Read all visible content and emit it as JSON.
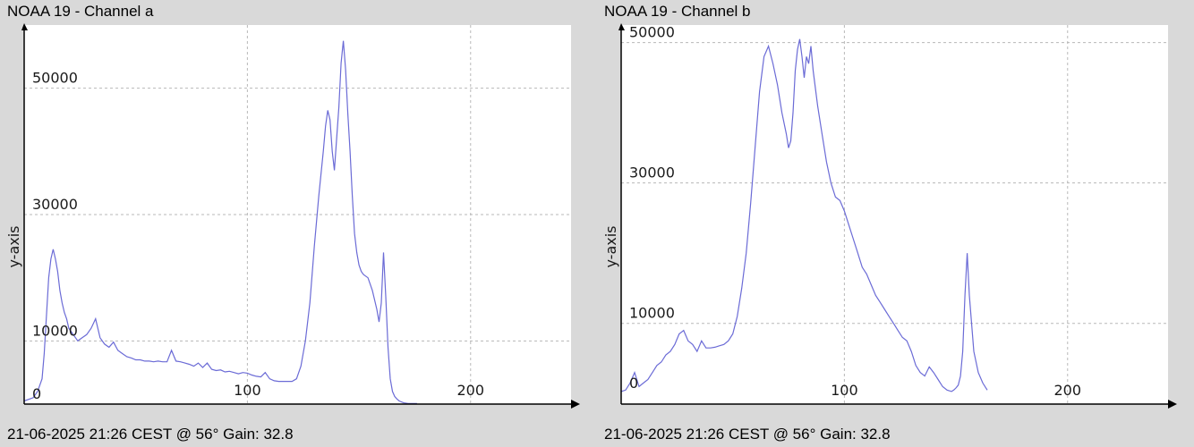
{
  "chart_data": [
    {
      "type": "line",
      "title": "NOAA 19 - Channel a",
      "footer": "21-06-2025 21:26 CEST @ 56° Gain: 32.8",
      "xlabel": "",
      "ylabel": "y-axis",
      "xlim": [
        0,
        245
      ],
      "ylim": [
        0,
        60000
      ],
      "x_ticks": [
        0,
        100,
        200
      ],
      "x_tick_labels": [
        "",
        "100",
        "200"
      ],
      "y_ticks": [
        0,
        10000,
        30000,
        50000
      ],
      "y_tick_labels": [
        "0",
        "10000",
        "30000",
        "50000"
      ],
      "grid": true,
      "series": [
        {
          "color": "#6b6bd6",
          "x": [
            0,
            4,
            6,
            8,
            9,
            10,
            11,
            12,
            13,
            14,
            15,
            16,
            17,
            18,
            19,
            20,
            22,
            24,
            26,
            28,
            30,
            32,
            34,
            36,
            38,
            40,
            42,
            44,
            46,
            48,
            50,
            52,
            54,
            56,
            58,
            60,
            62,
            64,
            66,
            68,
            70,
            72,
            74,
            76,
            78,
            80,
            82,
            84,
            86,
            88,
            90,
            92,
            94,
            96,
            98,
            100,
            102,
            104,
            106,
            108,
            110,
            112,
            114,
            116,
            118,
            120,
            122,
            124,
            126,
            128,
            130,
            132,
            134,
            135,
            136,
            137,
            138,
            139,
            140,
            141,
            142,
            143,
            144,
            145,
            146,
            147,
            148,
            149,
            150,
            151,
            152,
            154,
            156,
            158,
            159,
            160,
            161,
            162,
            163,
            164,
            165,
            166,
            167,
            168,
            170,
            172,
            174,
            176
          ],
          "y": [
            500,
            1000,
            2000,
            4000,
            8000,
            14000,
            20000,
            23000,
            24500,
            23000,
            21000,
            18000,
            16000,
            14500,
            13500,
            12000,
            11000,
            10000,
            10500,
            11000,
            12000,
            13500,
            10500,
            9500,
            9000,
            9800,
            8500,
            8000,
            7500,
            7300,
            7000,
            7000,
            6800,
            6800,
            6700,
            6800,
            6700,
            6700,
            8500,
            6800,
            6700,
            6500,
            6300,
            6000,
            6500,
            5800,
            6500,
            5500,
            5300,
            5400,
            5100,
            5200,
            5000,
            4800,
            5000,
            4900,
            4600,
            4400,
            4300,
            5000,
            4000,
            3700,
            3600,
            3600,
            3600,
            3600,
            4000,
            6000,
            10000,
            16000,
            25000,
            33000,
            40000,
            44000,
            46500,
            45000,
            40000,
            37000,
            42000,
            47000,
            54000,
            57500,
            53000,
            46000,
            40000,
            33000,
            27000,
            24000,
            22000,
            21000,
            20500,
            20000,
            18000,
            15000,
            13000,
            16000,
            24000,
            17000,
            9000,
            4000,
            2000,
            1200,
            800,
            500,
            200,
            100,
            100,
            100
          ]
        }
      ]
    },
    {
      "type": "line",
      "title": "NOAA 19 - Channel b",
      "footer": "21-06-2025 21:26 CEST @ 56° Gain: 32.8",
      "xlabel": "",
      "ylabel": "y-axis",
      "xlim": [
        0,
        245
      ],
      "ylim": [
        -1500,
        52500
      ],
      "x_ticks": [
        0,
        100,
        200
      ],
      "x_tick_labels": [
        "",
        "100",
        "200"
      ],
      "y_ticks": [
        0,
        10000,
        30000,
        50000
      ],
      "y_tick_labels": [
        "0",
        "10000",
        "30000",
        "50000"
      ],
      "grid": true,
      "series": [
        {
          "color": "#6b6bd6",
          "x": [
            0,
            2,
            4,
            6,
            8,
            10,
            12,
            14,
            16,
            18,
            20,
            22,
            24,
            26,
            28,
            30,
            32,
            34,
            36,
            38,
            40,
            42,
            44,
            46,
            48,
            50,
            52,
            54,
            56,
            58,
            60,
            62,
            64,
            66,
            68,
            70,
            72,
            74,
            75,
            76,
            77,
            78,
            79,
            80,
            81,
            82,
            83,
            84,
            85,
            86,
            88,
            90,
            92,
            94,
            96,
            98,
            100,
            102,
            104,
            106,
            108,
            110,
            112,
            114,
            116,
            118,
            120,
            122,
            124,
            126,
            128,
            130,
            132,
            134,
            136,
            138,
            140,
            142,
            144,
            146,
            148,
            149,
            150,
            151,
            152,
            153,
            154,
            155,
            156,
            158,
            160,
            162,
            164
          ],
          "y": [
            300,
            500,
            1500,
            3000,
            1000,
            1500,
            2000,
            3000,
            4000,
            4500,
            5500,
            6000,
            7000,
            8500,
            9000,
            7500,
            7000,
            6000,
            7500,
            6500,
            6500,
            6600,
            6800,
            7000,
            7500,
            8500,
            11000,
            15000,
            20000,
            27000,
            35000,
            43000,
            48000,
            49500,
            47000,
            44000,
            40000,
            37000,
            35000,
            36000,
            40000,
            46000,
            49000,
            50500,
            48000,
            45000,
            48000,
            47000,
            49500,
            46000,
            41000,
            37000,
            33000,
            30000,
            28000,
            27500,
            26000,
            24000,
            22000,
            20000,
            18000,
            17000,
            15500,
            14000,
            13000,
            12000,
            11000,
            10000,
            9000,
            8000,
            7500,
            6000,
            4000,
            3000,
            2500,
            3800,
            3000,
            2000,
            1000,
            500,
            300,
            500,
            800,
            1200,
            2500,
            6000,
            14000,
            20000,
            14000,
            6000,
            3000,
            1500,
            500
          ]
        }
      ]
    }
  ]
}
